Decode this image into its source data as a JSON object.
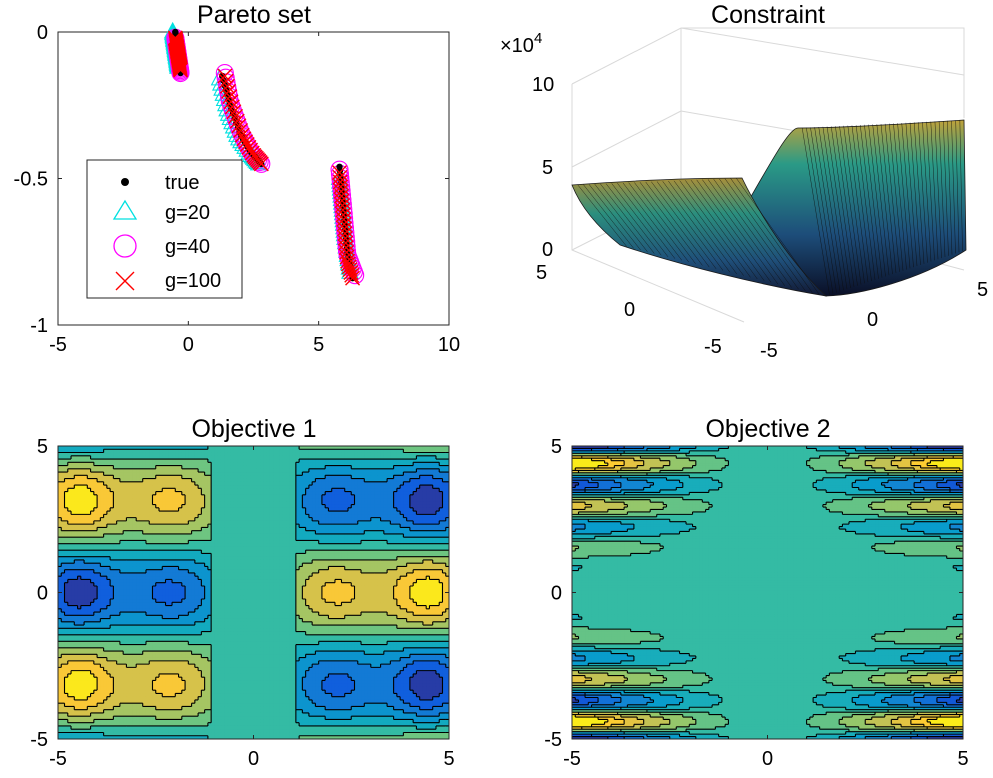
{
  "chart_data": [
    {
      "type": "scatter",
      "title": "Pareto set",
      "xlabel": "",
      "ylabel": "",
      "xlim": [
        -5,
        10
      ],
      "ylim": [
        -1,
        0
      ],
      "xticks": [
        "-5",
        "0",
        "5",
        "10"
      ],
      "yticks": [
        "0",
        "-0.5",
        "-1"
      ],
      "legend": {
        "placement": "left-middle",
        "entries": [
          "true",
          "g=20",
          "g=40",
          "g=100"
        ]
      },
      "series": [
        {
          "name": "true",
          "marker": "dot",
          "color": "#000000",
          "segments": [
            {
              "x": [
                -0.5,
                -0.3
              ],
              "y": [
                0.0,
                -0.14
              ]
            },
            {
              "x": [
                1.3,
                1.6,
                2.0,
                2.4,
                2.8
              ],
              "y": [
                -0.15,
                -0.25,
                -0.35,
                -0.41,
                -0.45
              ]
            },
            {
              "x": [
                5.8,
                5.9,
                6.0,
                6.1,
                6.3
              ],
              "y": [
                -0.46,
                -0.55,
                -0.65,
                -0.75,
                -0.84
              ]
            }
          ]
        },
        {
          "name": "g=20",
          "marker": "triangle",
          "color": "#00e0e0",
          "segments": [
            {
              "x": [
                -0.6,
                -0.4
              ],
              "y": [
                0.0,
                -0.12
              ]
            },
            {
              "x": [
                1.2,
                1.5,
                1.9,
                2.4,
                2.7
              ],
              "y": [
                -0.16,
                -0.27,
                -0.36,
                -0.42,
                -0.45
              ]
            },
            {
              "x": [
                5.8,
                5.9,
                6.0,
                6.2
              ],
              "y": [
                -0.5,
                -0.6,
                -0.7,
                -0.82
              ]
            }
          ]
        },
        {
          "name": "g=40",
          "marker": "circle",
          "color": "#ff00ff",
          "segments": [
            {
              "x": [
                -0.5,
                -0.3
              ],
              "y": [
                -0.02,
                -0.14
              ]
            },
            {
              "x": [
                1.4,
                1.6,
                2.0,
                2.4,
                2.8
              ],
              "y": [
                -0.14,
                -0.24,
                -0.34,
                -0.41,
                -0.45
              ]
            },
            {
              "x": [
                5.8,
                5.9,
                6.0,
                6.1,
                6.4
              ],
              "y": [
                -0.47,
                -0.56,
                -0.66,
                -0.76,
                -0.83
              ]
            }
          ]
        },
        {
          "name": "g=100",
          "marker": "x",
          "color": "#ff0000",
          "segments": [
            {
              "x": [
                -0.5,
                -0.3
              ],
              "y": [
                -0.02,
                -0.13
              ]
            },
            {
              "x": [
                1.4,
                1.7,
                2.1,
                2.5,
                2.8
              ],
              "y": [
                -0.15,
                -0.26,
                -0.36,
                -0.42,
                -0.45
              ]
            },
            {
              "x": [
                5.8,
                5.9,
                6.0,
                6.1,
                6.3
              ],
              "y": [
                -0.48,
                -0.58,
                -0.68,
                -0.78,
                -0.84
              ]
            }
          ]
        }
      ]
    },
    {
      "type": "surface",
      "title": "Constraint",
      "xlim": [
        -5,
        5
      ],
      "ylim": [
        -5,
        5
      ],
      "zlim": [
        0,
        100000
      ],
      "x_ticks": [
        "-5",
        "0",
        "5"
      ],
      "y_ticks": [
        "-5",
        "0",
        "5"
      ],
      "z_ticks": [
        "0",
        "5",
        "10"
      ],
      "z_exponent": "×10",
      "z_exponent_power": "4",
      "colormap": "parula"
    },
    {
      "type": "heatmap",
      "title": "Objective 1",
      "xlim": [
        -5,
        5
      ],
      "ylim": [
        -5,
        5
      ],
      "xticks": [
        "-5",
        "0",
        "5"
      ],
      "yticks": [
        "5",
        "0",
        "-5"
      ],
      "colormap": "parula"
    },
    {
      "type": "heatmap",
      "title": "Objective 2",
      "xlim": [
        -5,
        5
      ],
      "ylim": [
        -5,
        5
      ],
      "xticks": [
        "-5",
        "0",
        "5"
      ],
      "yticks": [
        "5",
        "0",
        "-5"
      ],
      "colormap": "parula"
    }
  ]
}
